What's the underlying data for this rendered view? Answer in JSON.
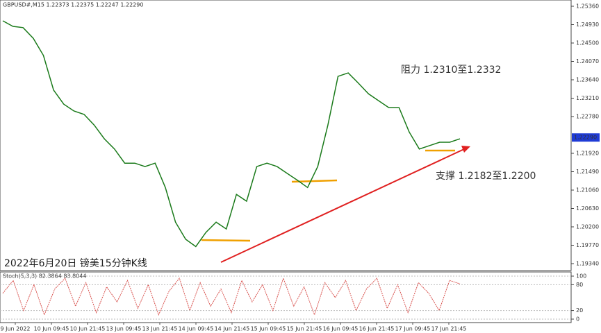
{
  "chart_data": [
    {
      "type": "line",
      "title": "GBPUSD#,M15  1.22373 1.22375 1.22247 1.22290",
      "annotations": [
        "阻力 1.2310至1.2332",
        "支撑 1.2182至1.2200",
        "2022年6月20日 镑美15分钟K线"
      ],
      "xticks": [
        "9 Jun 2022",
        "10 Jun 09:45",
        "10 Jun 21:45",
        "13 Jun 09:45",
        "13 Jun 21:45",
        "14 Jun 09:45",
        "14 Jun 21:45",
        "15 Jun 09:45",
        "15 Jun 21:45",
        "16 Jun 09:45",
        "16 Jun 21:45",
        "17 Jun 09:45",
        "17 Jun 21:45"
      ],
      "values": [
        1.2502,
        1.2489,
        1.2486,
        1.2461,
        1.2421,
        1.234,
        1.2307,
        1.2291,
        1.2283,
        1.2258,
        1.2226,
        1.2202,
        1.2169,
        1.2169,
        1.2161,
        1.2169,
        1.2112,
        1.2031,
        1.1991,
        1.1974,
        1.2007,
        1.2031,
        1.2015,
        1.2096,
        1.208,
        1.2161,
        1.2169,
        1.2161,
        1.2145,
        1.2129,
        1.2112,
        1.2161,
        1.2258,
        1.2372,
        1.238,
        1.2356,
        1.2331,
        1.2315,
        1.2299,
        1.2299,
        1.2242,
        1.2202,
        1.221,
        1.2218,
        1.2218,
        1.2226
      ],
      "color": "#1a7a1a",
      "ylim": [
        1.19178,
        1.25506
      ],
      "yticks": [
        {
          "value": 1.2536,
          "label": "1.25360"
        },
        {
          "value": 1.2493,
          "label": "1.24930"
        },
        {
          "value": 1.245,
          "label": "1.24500"
        },
        {
          "value": 1.2407,
          "label": "1.24070"
        },
        {
          "value": 1.2364,
          "label": "1.23640"
        },
        {
          "value": 1.2321,
          "label": "1.23210"
        },
        {
          "value": 1.2278,
          "label": "1.22780"
        },
        {
          "value": 1.2192,
          "label": "1.21920"
        },
        {
          "value": 1.2149,
          "label": "1.21490"
        },
        {
          "value": 1.2106,
          "label": "1.21060"
        },
        {
          "value": 1.2063,
          "label": "1.20630"
        },
        {
          "value": 1.202,
          "label": "1.20200"
        },
        {
          "value": 1.1977,
          "label": "1.19770"
        },
        {
          "value": 1.1934,
          "label": "1.19340"
        }
      ],
      "last_price": {
        "value": 1.2229,
        "label": "1.22290"
      }
    },
    {
      "type": "line",
      "title": "Stoch(5,3,3) 82.3864 83.8044",
      "values": [
        60,
        90,
        20,
        80,
        10,
        70,
        95,
        30,
        85,
        15,
        75,
        40,
        90,
        25,
        80,
        10,
        65,
        95,
        20,
        85,
        30,
        70,
        15,
        90,
        40,
        80,
        20,
        95,
        30,
        75,
        10,
        85,
        50,
        90,
        20,
        70,
        95,
        25,
        80,
        15,
        85,
        60,
        20,
        90,
        82
      ],
      "color": "#d9534f",
      "ylim": [
        -8.1,
        109.7
      ],
      "yticks": [
        100,
        80,
        20,
        0
      ]
    }
  ]
}
